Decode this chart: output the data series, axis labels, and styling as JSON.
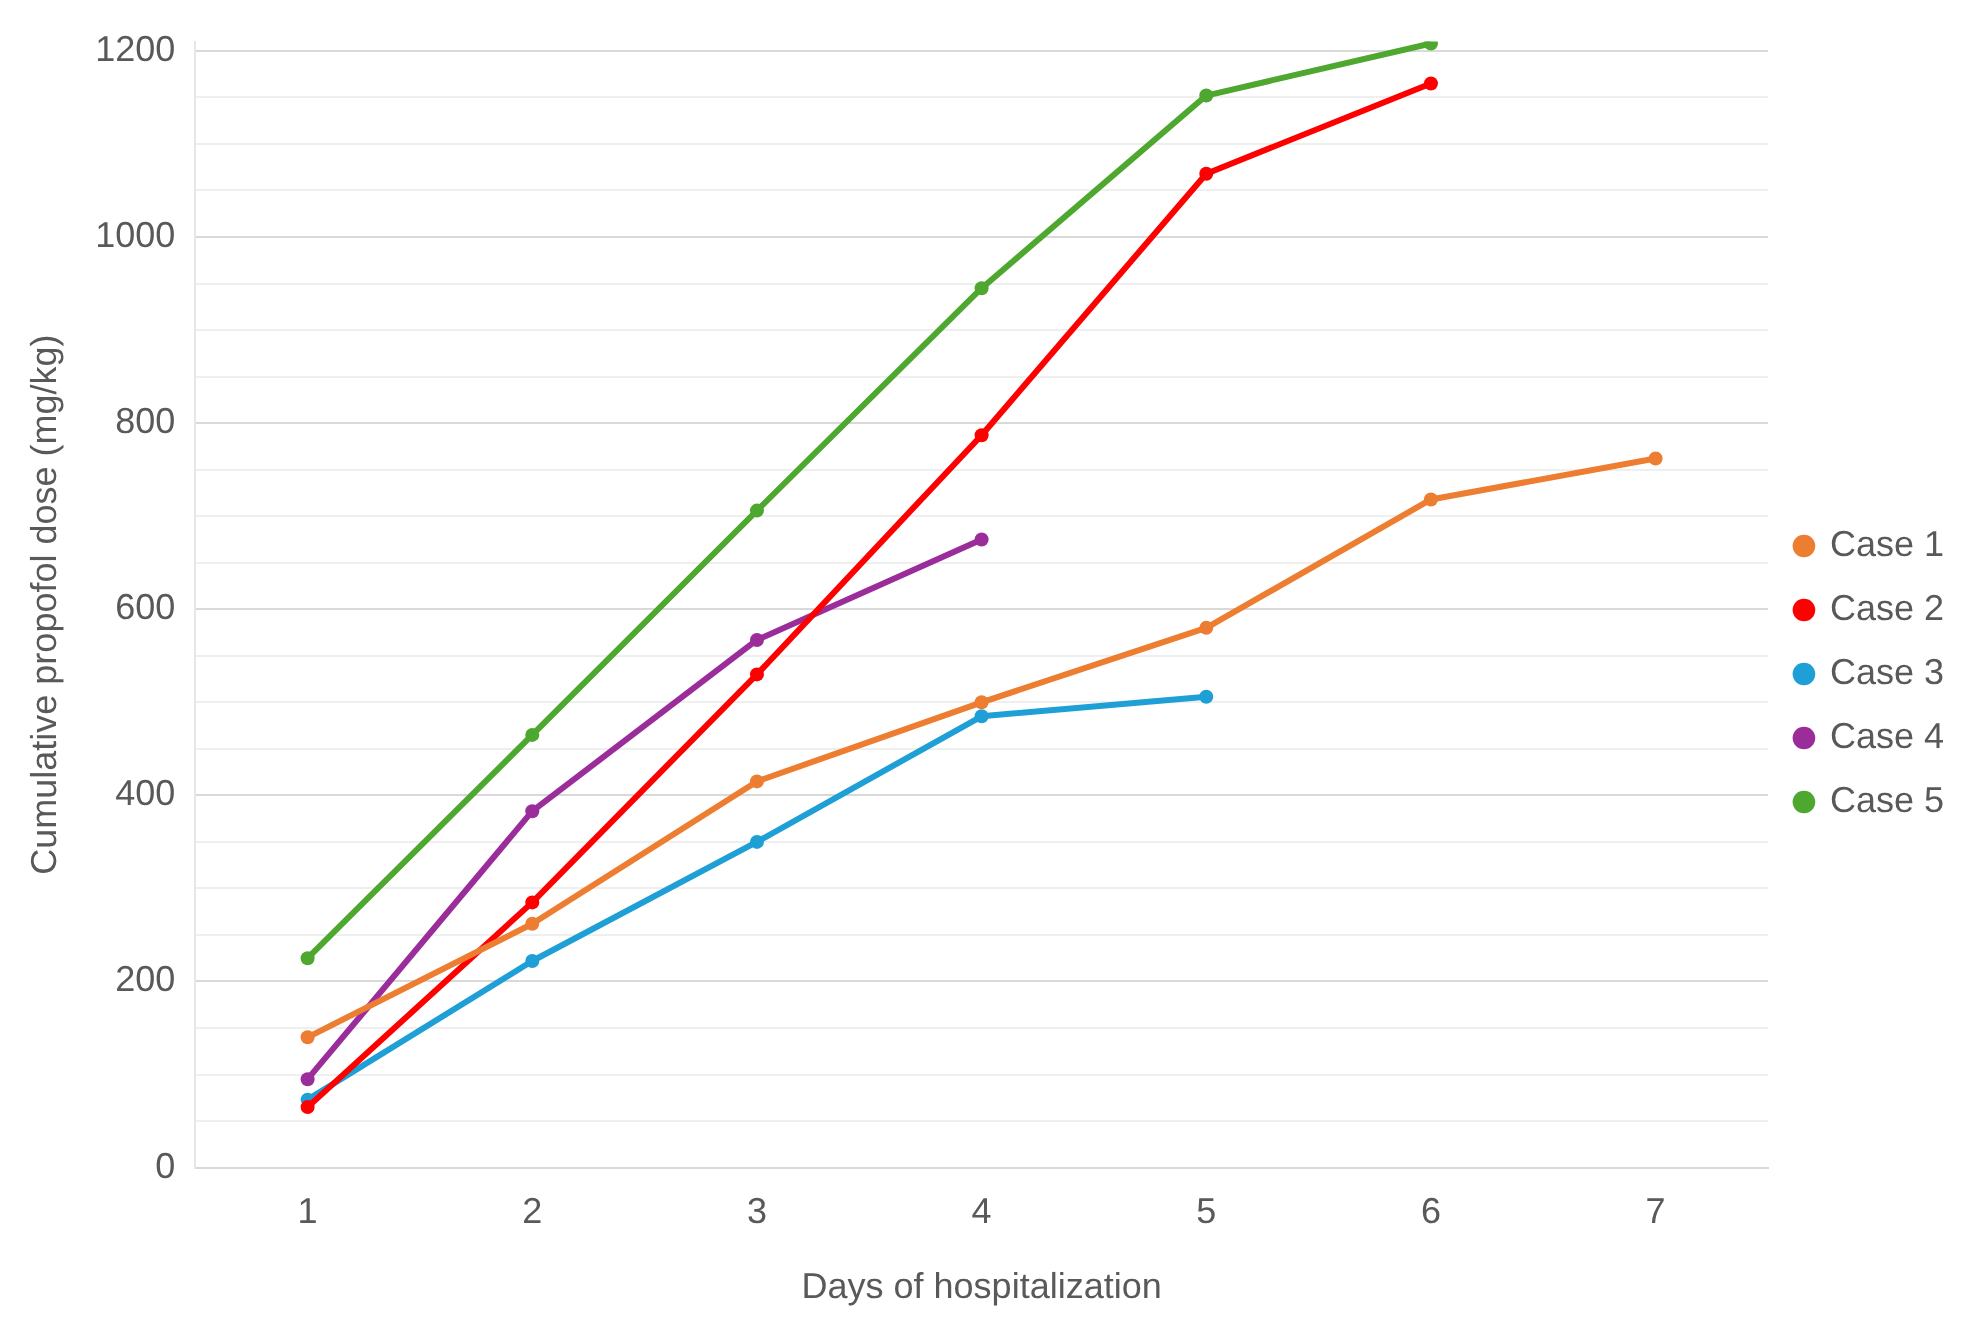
{
  "chart_data": {
    "type": "line",
    "xlabel": "Days of hospitalization",
    "ylabel": "Cumulative propofol dose (mg/kg)",
    "categories": [
      "1",
      "2",
      "3",
      "4",
      "5",
      "6",
      "7"
    ],
    "series": [
      {
        "name": "Case 1",
        "color": "#ed7d31",
        "values": [
          140,
          262,
          415,
          500,
          580,
          718,
          762
        ]
      },
      {
        "name": "Case 2",
        "color": "#ff0000",
        "values": [
          65,
          285,
          530,
          787,
          1068,
          1165,
          null
        ]
      },
      {
        "name": "Case 3",
        "color": "#1e9fd6",
        "values": [
          73,
          222,
          350,
          485,
          506,
          null,
          null
        ]
      },
      {
        "name": "Case 4",
        "color": "#9b2d9b",
        "values": [
          95,
          383,
          567,
          675,
          null,
          null,
          null
        ]
      },
      {
        "name": "Case 5",
        "color": "#4ea72e",
        "values": [
          225,
          465,
          706,
          945,
          1152,
          1208,
          null
        ]
      }
    ],
    "ylim": [
      0,
      1210
    ],
    "yticks": [
      0,
      {
        "value": 50,
        "label": null
      },
      {
        "value": 100,
        "label": null
      },
      {
        "value": 150,
        "label": null
      },
      200,
      {
        "value": 250,
        "label": null
      },
      {
        "value": 300,
        "label": null
      },
      {
        "value": 350,
        "label": null
      },
      400,
      {
        "value": 450,
        "label": null
      },
      {
        "value": 500,
        "label": null
      },
      {
        "value": 550,
        "label": null
      },
      600,
      {
        "value": 650,
        "label": null
      },
      {
        "value": 700,
        "label": null
      },
      {
        "value": 750,
        "label": null
      },
      800,
      {
        "value": 850,
        "label": null
      },
      {
        "value": 900,
        "label": null
      },
      {
        "value": 950,
        "label": null
      },
      1000,
      {
        "value": 1050,
        "label": null
      },
      {
        "value": 1100,
        "label": null
      },
      {
        "value": 1150,
        "label": null
      },
      1200
    ],
    "grid": "y",
    "legend": "right",
    "marker": "circle",
    "line_style": "solid"
  }
}
